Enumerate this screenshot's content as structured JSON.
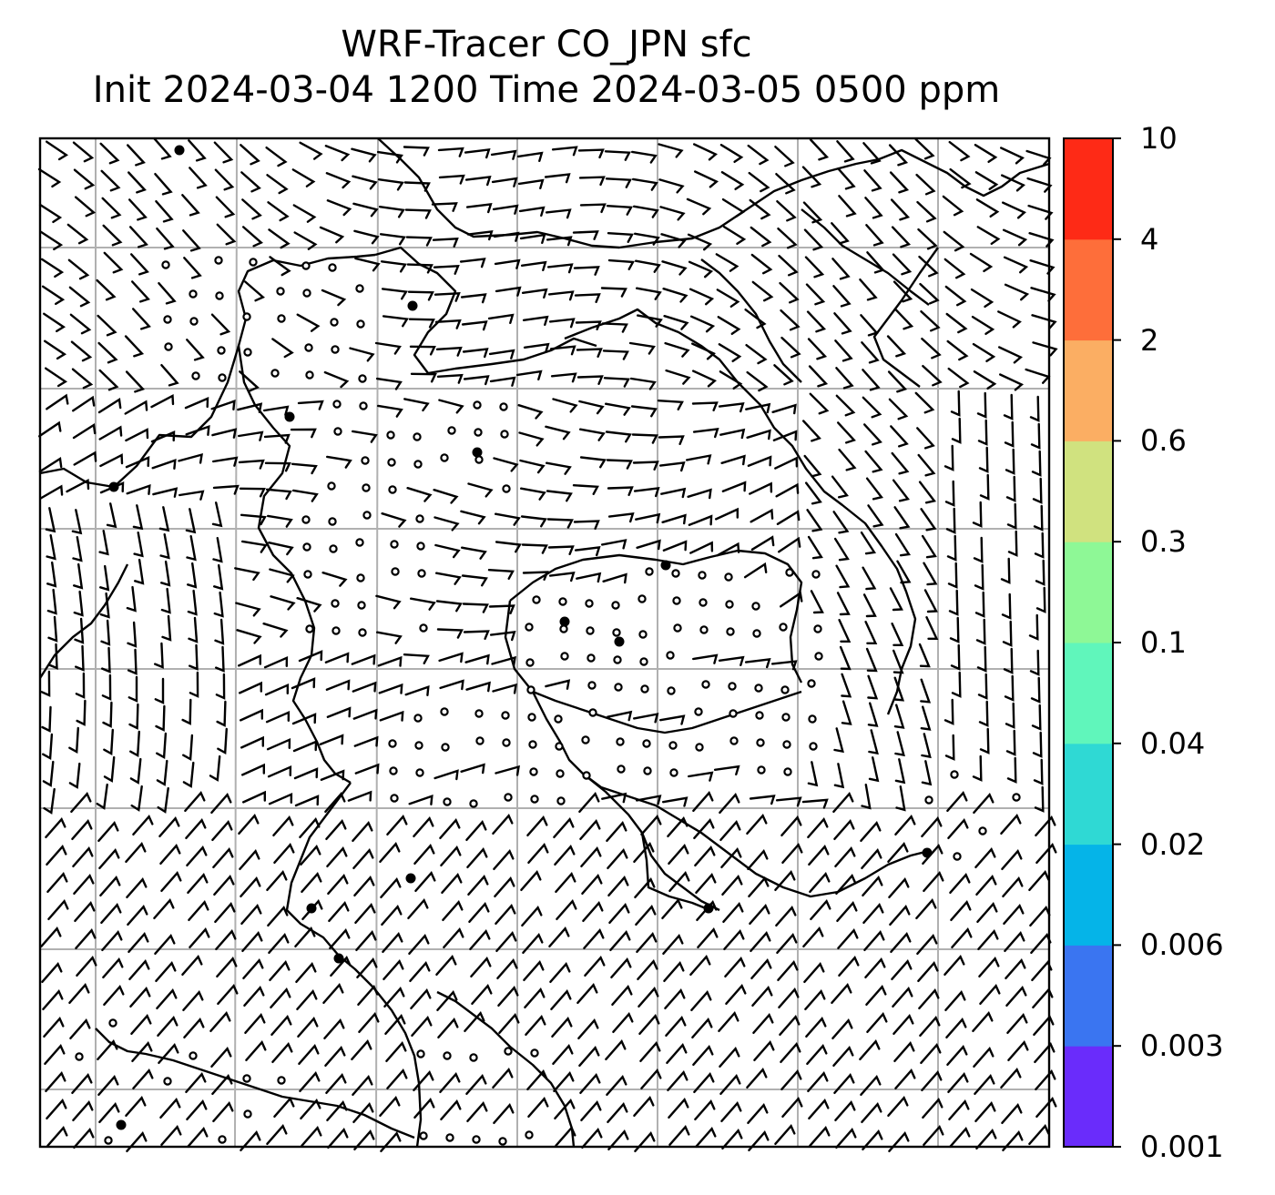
{
  "title": {
    "line1": "WRF-Tracer CO_JPN sfc",
    "line2": "Init 2024-03-04 1200 Time 2024-03-05 0500 ppm"
  },
  "colorbar": {
    "levels": [
      "0.001",
      "0.003",
      "0.006",
      "0.02",
      "0.04",
      "0.1",
      "0.3",
      "0.6",
      "2",
      "4",
      "10"
    ],
    "colors": [
      "#6a2cfb",
      "#3a75f1",
      "#05b4e8",
      "#2fd9d4",
      "#60f6bb",
      "#8ef896",
      "#d0e27f",
      "#fbae63",
      "#fe6e3a",
      "#fe2a16"
    ]
  },
  "map": {
    "gridlines": true,
    "coastline_color": "#000000",
    "gridline_color": "#b0b0b0"
  }
}
